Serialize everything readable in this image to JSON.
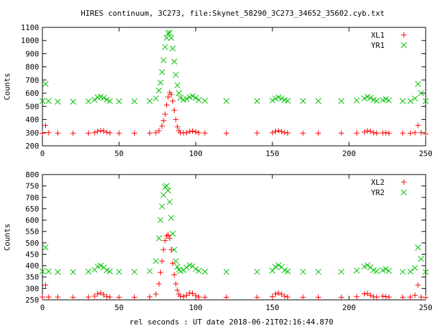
{
  "title": "HIRES continuum, 3C273, file:Skynet_58290_3C273_34652_35602.cyb.txt",
  "xlabel": "rel seconds : UT date 2018-06-21T02:16:44.870",
  "colors": {
    "red": "#ff0000",
    "green": "#00c000",
    "axis": "#000000",
    "grid": "#a0a0a0"
  },
  "chart_data": [
    {
      "type": "scatter",
      "ylabel": "Counts",
      "xlim": [
        0,
        250
      ],
      "ylim": [
        200,
        1100
      ],
      "xticks": [
        0,
        50,
        100,
        150,
        200,
        250
      ],
      "yticks": [
        200,
        300,
        400,
        500,
        600,
        700,
        800,
        900,
        1000,
        1100
      ],
      "legend": "top-right",
      "series": [
        {
          "name": "XL1",
          "marker": "plus",
          "color": "#ff0000",
          "x": [
            0,
            2,
            4,
            10,
            20,
            30,
            34,
            36,
            38,
            40,
            42,
            44,
            50,
            60,
            70,
            74,
            76,
            78,
            79,
            80,
            81,
            82,
            83,
            84,
            85,
            86,
            87,
            88,
            89,
            90,
            92,
            94,
            96,
            98,
            100,
            102,
            106,
            120,
            140,
            150,
            152,
            154,
            156,
            158,
            160,
            170,
            180,
            195,
            205,
            210,
            212,
            214,
            216,
            218,
            222,
            224,
            226,
            235,
            240,
            243,
            245,
            247,
            250
          ],
          "y": [
            295,
            355,
            300,
            296,
            295,
            296,
            300,
            310,
            316,
            312,
            302,
            298,
            296,
            296,
            297,
            300,
            315,
            350,
            390,
            440,
            510,
            570,
            605,
            590,
            540,
            470,
            400,
            345,
            315,
            300,
            298,
            300,
            308,
            312,
            306,
            299,
            297,
            296,
            297,
            300,
            310,
            314,
            308,
            300,
            297,
            296,
            296,
            296,
            297,
            304,
            314,
            310,
            300,
            296,
            298,
            300,
            296,
            296,
            296,
            300,
            355,
            300,
            290
          ]
        },
        {
          "name": "YR1",
          "marker": "cross",
          "color": "#00c000",
          "x": [
            0,
            2,
            4,
            10,
            20,
            30,
            34,
            36,
            38,
            40,
            42,
            44,
            50,
            60,
            70,
            74,
            76,
            77,
            78,
            79,
            80,
            81,
            82,
            83,
            84,
            85,
            86,
            87,
            88,
            89,
            90,
            92,
            94,
            96,
            98,
            100,
            102,
            106,
            120,
            140,
            150,
            152,
            154,
            156,
            158,
            160,
            170,
            180,
            195,
            205,
            210,
            212,
            214,
            216,
            218,
            222,
            224,
            226,
            235,
            240,
            243,
            245,
            247,
            250
          ],
          "y": [
            540,
            670,
            540,
            535,
            535,
            538,
            550,
            568,
            572,
            565,
            550,
            540,
            538,
            538,
            540,
            560,
            620,
            680,
            760,
            850,
            950,
            1020,
            1055,
            1060,
            1020,
            940,
            840,
            740,
            660,
            600,
            565,
            550,
            555,
            570,
            578,
            565,
            548,
            542,
            540,
            540,
            545,
            560,
            568,
            560,
            548,
            542,
            540,
            540,
            540,
            545,
            560,
            572,
            565,
            550,
            542,
            548,
            555,
            545,
            540,
            540,
            560,
            670,
            600,
            540
          ]
        }
      ]
    },
    {
      "type": "scatter",
      "ylabel": "Counts",
      "xlim": [
        0,
        250
      ],
      "ylim": [
        250,
        800
      ],
      "xticks": [
        0,
        50,
        100,
        150,
        200,
        250
      ],
      "yticks": [
        250,
        300,
        350,
        400,
        450,
        500,
        550,
        600,
        650,
        700,
        750,
        800
      ],
      "legend": "top-right",
      "series": [
        {
          "name": "XL2",
          "marker": "plus",
          "color": "#ff0000",
          "x": [
            0,
            2,
            4,
            10,
            20,
            30,
            34,
            36,
            38,
            40,
            42,
            44,
            50,
            60,
            70,
            74,
            76,
            77,
            78,
            79,
            80,
            81,
            82,
            83,
            84,
            85,
            86,
            87,
            88,
            89,
            90,
            92,
            94,
            96,
            98,
            100,
            102,
            106,
            120,
            140,
            150,
            152,
            154,
            156,
            158,
            160,
            170,
            180,
            195,
            205,
            210,
            212,
            214,
            216,
            218,
            222,
            224,
            226,
            235,
            240,
            243,
            245,
            247,
            250
          ],
          "y": [
            262,
            315,
            262,
            262,
            261,
            262,
            266,
            276,
            280,
            272,
            264,
            262,
            261,
            261,
            263,
            275,
            320,
            370,
            420,
            470,
            510,
            530,
            535,
            520,
            470,
            410,
            360,
            320,
            292,
            275,
            266,
            264,
            270,
            280,
            278,
            268,
            262,
            261,
            261,
            261,
            264,
            276,
            280,
            274,
            266,
            262,
            261,
            261,
            261,
            264,
            276,
            278,
            270,
            263,
            262,
            266,
            264,
            262,
            261,
            262,
            270,
            315,
            262,
            260
          ]
        },
        {
          "name": "YR2",
          "marker": "cross",
          "color": "#00c000",
          "x": [
            0,
            2,
            4,
            10,
            20,
            30,
            34,
            36,
            38,
            40,
            42,
            44,
            50,
            60,
            70,
            74,
            76,
            77,
            78,
            79,
            80,
            81,
            82,
            83,
            84,
            85,
            86,
            87,
            88,
            89,
            90,
            92,
            94,
            96,
            98,
            100,
            102,
            106,
            120,
            140,
            150,
            152,
            154,
            156,
            158,
            160,
            170,
            180,
            195,
            205,
            210,
            212,
            214,
            216,
            218,
            222,
            224,
            226,
            235,
            240,
            243,
            245,
            247,
            250
          ],
          "y": [
            375,
            480,
            375,
            372,
            372,
            374,
            382,
            396,
            400,
            392,
            380,
            375,
            373,
            373,
            376,
            420,
            520,
            600,
            660,
            710,
            745,
            750,
            730,
            680,
            610,
            540,
            470,
            420,
            395,
            382,
            376,
            380,
            392,
            402,
            398,
            385,
            377,
            374,
            373,
            373,
            378,
            395,
            402,
            394,
            380,
            375,
            373,
            373,
            373,
            378,
            396,
            402,
            392,
            380,
            376,
            380,
            385,
            377,
            373,
            374,
            390,
            480,
            430,
            372
          ]
        }
      ]
    }
  ]
}
